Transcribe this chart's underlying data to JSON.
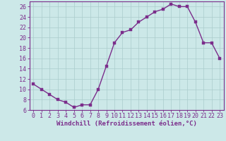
{
  "x": [
    0,
    1,
    2,
    3,
    4,
    5,
    6,
    7,
    8,
    9,
    10,
    11,
    12,
    13,
    14,
    15,
    16,
    17,
    18,
    19,
    20,
    21,
    22,
    23
  ],
  "y": [
    11,
    10,
    9,
    8,
    7.5,
    6.5,
    7,
    7,
    10,
    14.5,
    19,
    21,
    21.5,
    23,
    24,
    25,
    25.5,
    26.5,
    26,
    26,
    23,
    19,
    19,
    16
  ],
  "line_color": "#7b2d8b",
  "marker_color": "#7b2d8b",
  "bg_color": "#cce8e8",
  "grid_color": "#aacccc",
  "xlabel": "Windchill (Refroidissement éolien,°C)",
  "ylim": [
    6,
    27
  ],
  "yticks": [
    6,
    8,
    10,
    12,
    14,
    16,
    18,
    20,
    22,
    24,
    26
  ],
  "xticks": [
    0,
    1,
    2,
    3,
    4,
    5,
    6,
    7,
    8,
    9,
    10,
    11,
    12,
    13,
    14,
    15,
    16,
    17,
    18,
    19,
    20,
    21,
    22,
    23
  ],
  "xlabel_fontsize": 6.5,
  "tick_fontsize": 6.0,
  "line_width": 1.0,
  "marker_size": 2.5
}
